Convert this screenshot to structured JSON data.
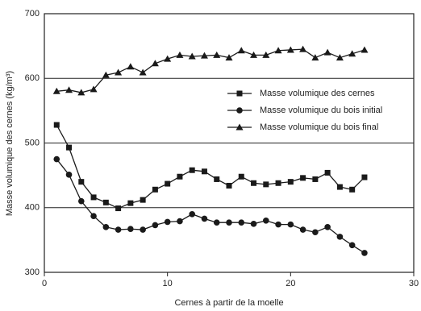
{
  "chart_data": {
    "type": "line",
    "x_label": "Cernes à partir de la moelle",
    "y_label": "Masse volumique des cernes (kg/m³)",
    "x": [
      1,
      2,
      3,
      4,
      5,
      6,
      7,
      8,
      9,
      10,
      11,
      12,
      13,
      14,
      15,
      16,
      17,
      18,
      19,
      20,
      21,
      22,
      23,
      24,
      25,
      26
    ],
    "series": [
      {
        "name": "Masse volumique des cernes",
        "color": "#1a1a1a",
        "marker": "square",
        "values": [
          528,
          493,
          440,
          416,
          408,
          399,
          407,
          412,
          428,
          437,
          448,
          458,
          456,
          444,
          434,
          448,
          438,
          436,
          438,
          440,
          446,
          444,
          454,
          432,
          428,
          447
        ]
      },
      {
        "name": "Masse volumique du bois initial",
        "color": "#1a1a1a",
        "marker": "circle",
        "values": [
          475,
          451,
          410,
          387,
          370,
          366,
          367,
          366,
          373,
          378,
          379,
          390,
          383,
          377,
          377,
          377,
          375,
          380,
          374,
          374,
          366,
          362,
          370,
          355,
          342,
          330
        ]
      },
      {
        "name": "Masse volumique du bois final",
        "color": "#1a1a1a",
        "marker": "triangle",
        "values": [
          580,
          582,
          578,
          583,
          605,
          609,
          618,
          609,
          623,
          630,
          636,
          634,
          635,
          636,
          632,
          643,
          636,
          636,
          643,
          644,
          645,
          632,
          640,
          632,
          638,
          644
        ]
      }
    ],
    "xlim": [
      0,
      30
    ],
    "xticks": [
      0,
      10,
      20,
      30
    ],
    "ylim": [
      300,
      700
    ],
    "yticks": [
      300,
      400,
      500,
      600,
      700
    ],
    "grid": true,
    "legend": "upper-right"
  }
}
